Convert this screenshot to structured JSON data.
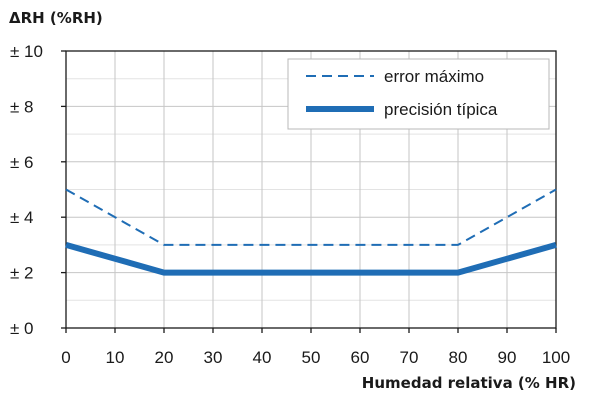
{
  "chart_data": {
    "type": "line",
    "ylabel": "ΔRH (%RH)",
    "xlabel": "Humedad relativa (% HR)",
    "xlim": [
      0,
      100
    ],
    "ylim": [
      0,
      10
    ],
    "x_ticks": [
      0,
      10,
      20,
      30,
      40,
      50,
      60,
      70,
      80,
      90,
      100
    ],
    "x_tick_labels": [
      "0",
      "10",
      "20",
      "30",
      "40",
      "50",
      "60",
      "70",
      "80",
      "90",
      "100"
    ],
    "y_ticks": [
      0,
      2,
      4,
      6,
      8,
      10
    ],
    "y_tick_labels": [
      "± 0",
      "± 2",
      "± 4",
      "± 6",
      "± 8",
      "± 10"
    ],
    "grid": true,
    "legend_position": "top-right",
    "series": [
      {
        "name": "error máximo",
        "style": "dashed",
        "color": "#1f6db5",
        "x": [
          0,
          20,
          80,
          100
        ],
        "y": [
          5,
          3,
          3,
          5
        ]
      },
      {
        "name": "precisión típica",
        "style": "solid-thick",
        "color": "#1f6db5",
        "x": [
          0,
          20,
          80,
          100
        ],
        "y": [
          3,
          2,
          2,
          3
        ]
      }
    ]
  }
}
